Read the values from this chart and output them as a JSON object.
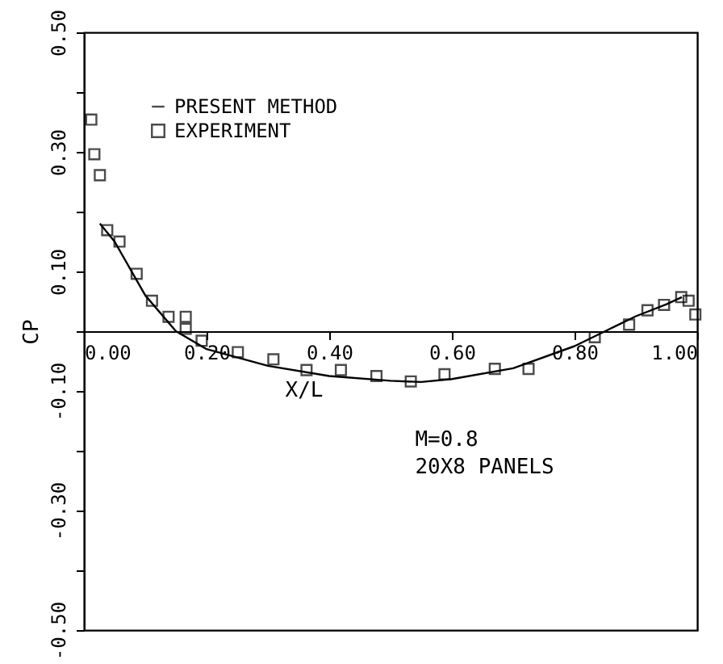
{
  "chart_data": {
    "type": "line",
    "xlabel": "X/L",
    "ylabel": "CP",
    "xlim": [
      0,
      1
    ],
    "ylim": [
      -0.5,
      0.5
    ],
    "xticks": [
      {
        "value": 0,
        "label": "0.00"
      },
      {
        "value": 0.2,
        "label": "0.20"
      },
      {
        "value": 0.4,
        "label": "0.40"
      },
      {
        "value": 0.6,
        "label": "0.60"
      },
      {
        "value": 0.8,
        "label": "0.80"
      },
      {
        "value": 1,
        "label": "1.00"
      }
    ],
    "yticks": [
      {
        "value": 0.5,
        "label": "0.50"
      },
      {
        "value": 0.4,
        "label": null
      },
      {
        "value": 0.3,
        "label": "0.30"
      },
      {
        "value": 0.2,
        "label": null
      },
      {
        "value": 0.1,
        "label": "0.10"
      },
      {
        "value": 0,
        "label": null
      },
      {
        "value": -0.1,
        "label": "-0.10"
      },
      {
        "value": -0.2,
        "label": null
      },
      {
        "value": -0.3,
        "label": "-0.30"
      },
      {
        "value": -0.4,
        "label": null
      },
      {
        "value": -0.5,
        "label": "-0.50"
      }
    ],
    "grid": false,
    "legend": "top left",
    "annotations": [
      "M=0.8",
      "20X8 PANELS"
    ],
    "series": [
      {
        "name": "PRESENT METHOD",
        "type": "line",
        "color": "#000000",
        "marker": "none",
        "line_style": "solid",
        "x": [
          0.026,
          0.05,
          0.1,
          0.15,
          0.2,
          0.3,
          0.4,
          0.5,
          0.55,
          0.6,
          0.7,
          0.8,
          0.85,
          0.9,
          0.95,
          0.975
        ],
        "values": [
          0.18,
          0.15,
          0.06,
          0.0,
          -0.03,
          -0.058,
          -0.075,
          -0.083,
          -0.085,
          -0.08,
          -0.062,
          -0.025,
          0.0,
          0.025,
          0.045,
          0.057
        ]
      },
      {
        "name": "EXPERIMENT",
        "type": "scatter",
        "color": "#000000",
        "marker": "square",
        "x": [
          0.012,
          0.017,
          0.026,
          0.038,
          0.058,
          0.086,
          0.111,
          0.138,
          0.166,
          0.166,
          0.192,
          0.251,
          0.309,
          0.363,
          0.419,
          0.477,
          0.533,
          0.588,
          0.67,
          0.725,
          0.833,
          0.889,
          0.919,
          0.946,
          0.974,
          0.986,
          0.997
        ],
        "values": [
          0.354,
          0.296,
          0.261,
          0.169,
          0.15,
          0.096,
          0.051,
          0.024,
          0.024,
          0.004,
          -0.016,
          -0.035,
          -0.047,
          -0.065,
          -0.065,
          -0.075,
          -0.084,
          -0.072,
          -0.063,
          -0.063,
          -0.01,
          0.011,
          0.035,
          0.044,
          0.057,
          0.051,
          0.028
        ]
      }
    ]
  }
}
